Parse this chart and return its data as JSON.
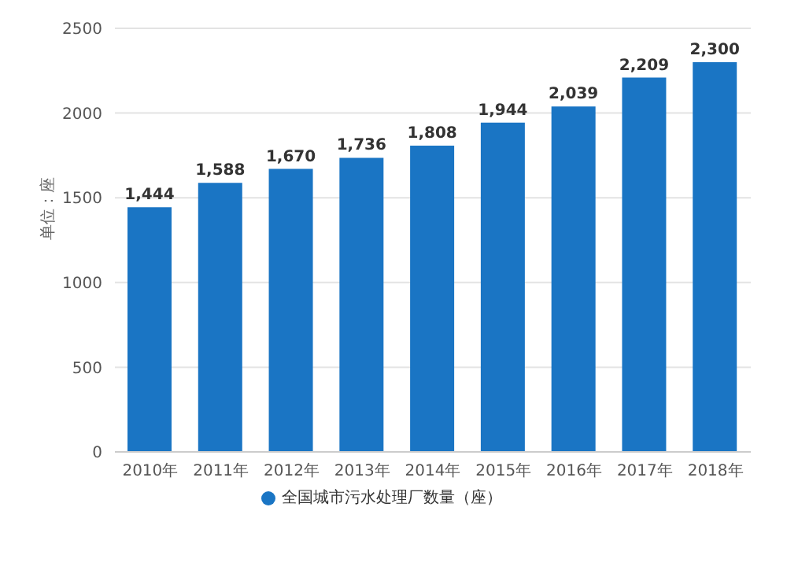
{
  "chart_data": {
    "type": "bar",
    "ylabel": "单位：座",
    "categories": [
      "2010年",
      "2011年",
      "2012年",
      "2013年",
      "2014年",
      "2015年",
      "2016年",
      "2017年",
      "2018年"
    ],
    "series": [
      {
        "name": "全国城市污水处理厂数量（座）",
        "color": "#1a75c4",
        "values": [
          1444,
          1588,
          1670,
          1736,
          1808,
          1944,
          2039,
          2209,
          2300
        ],
        "value_labels": [
          "1,444",
          "1,588",
          "1,670",
          "1,736",
          "1,808",
          "1,944",
          "2,039",
          "2,209",
          "2,300"
        ]
      }
    ],
    "ylim": [
      0,
      2500
    ],
    "yticks": [
      0,
      500,
      1000,
      1500,
      2000,
      2500
    ],
    "grid": "y",
    "legend": "bottom"
  }
}
